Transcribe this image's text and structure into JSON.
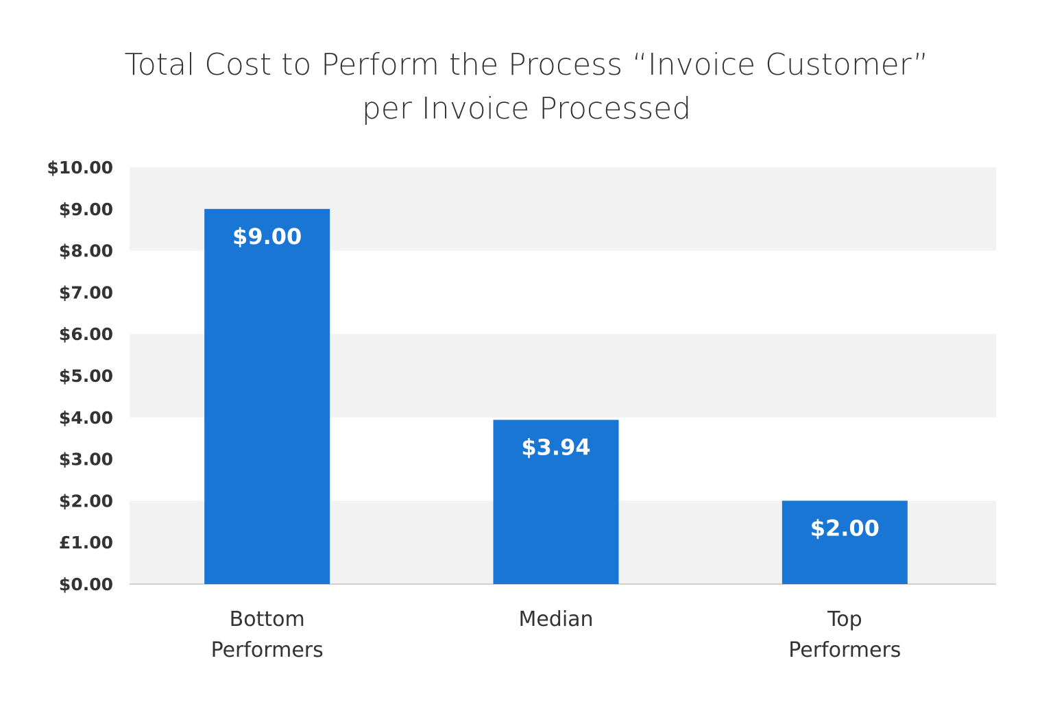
{
  "chart_data": {
    "type": "bar",
    "title": [
      "Total Cost to Perform the Process “Invoice Customer”",
      "per Invoice Processed"
    ],
    "categories": [
      [
        "Bottom",
        "Performers"
      ],
      [
        "Median"
      ],
      [
        "Top",
        "Performers"
      ]
    ],
    "values": [
      9.0,
      3.94,
      2.0
    ],
    "data_labels": [
      "$9.00",
      "$3.94",
      "$2.00"
    ],
    "xlabel": "",
    "ylabel": "",
    "ylim": [
      0,
      10
    ],
    "yticks": [
      0,
      1,
      2,
      3,
      4,
      5,
      6,
      7,
      8,
      9,
      10
    ],
    "ytick_labels": [
      "$0.00",
      "£1.00",
      "$2.00",
      "$3.00",
      "$4.00",
      "$5.00",
      "$6.00",
      "$7.00",
      "$8.00",
      "$9.00",
      "$10.00"
    ],
    "grid": "alternating horizontal bands",
    "legend": "none",
    "colors": {
      "bar": "#1a76d4",
      "band": "#f2f2f2",
      "text": "#333333"
    }
  }
}
